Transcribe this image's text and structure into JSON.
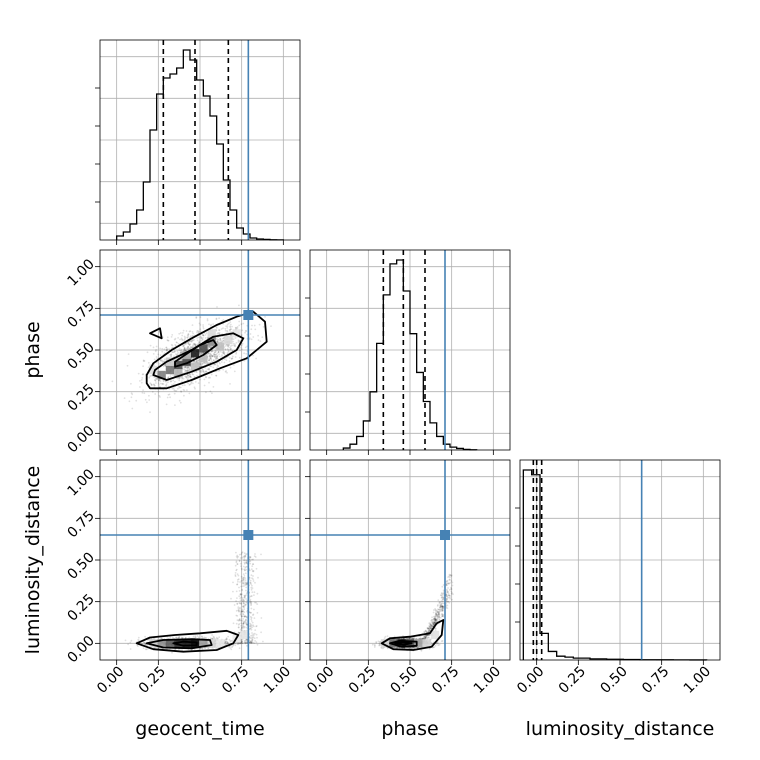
{
  "chart_data": {
    "type": "corner",
    "parameters": [
      "geocent_time",
      "phase",
      "luminosity_distance"
    ],
    "ticks": [
      0.0,
      0.25,
      0.5,
      0.75,
      1.0
    ],
    "tick_labels": [
      "0.00",
      "0.25",
      "0.50",
      "0.75",
      "1.00"
    ],
    "axis_range": [
      -0.1,
      1.1
    ],
    "grid": true,
    "truths": {
      "geocent_time": 0.79,
      "phase": 0.71,
      "luminosity_distance": 0.65,
      "luminosity_distance_marginal_line": 0.63
    },
    "truth_color": "#4682b4",
    "quantiles": {
      "geocent_time": [
        0.28,
        0.47,
        0.67
      ],
      "phase": [
        0.34,
        0.46,
        0.59
      ],
      "luminosity_distance": [
        -0.02,
        0.0,
        0.03
      ]
    },
    "histograms": {
      "geocent_time": {
        "edges": [
          0.0,
          0.04,
          0.08,
          0.12,
          0.16,
          0.2,
          0.24,
          0.28,
          0.32,
          0.36,
          0.4,
          0.44,
          0.48,
          0.52,
          0.56,
          0.6,
          0.64,
          0.68,
          0.72,
          0.76,
          0.8,
          0.84,
          0.88,
          0.92,
          0.96,
          1.0
        ],
        "counts": [
          2,
          4,
          8,
          15,
          29,
          55,
          73,
          81,
          83,
          86,
          95,
          90,
          80,
          72,
          62,
          48,
          30,
          15,
          6,
          3,
          1,
          0.5,
          0.3,
          0.1,
          0.05
        ]
      },
      "phase": {
        "edges": [
          0.1,
          0.14,
          0.18,
          0.22,
          0.26,
          0.3,
          0.34,
          0.38,
          0.42,
          0.46,
          0.5,
          0.54,
          0.58,
          0.62,
          0.66,
          0.7,
          0.74,
          0.78,
          0.82,
          0.86,
          0.9
        ],
        "counts": [
          1,
          3,
          7,
          15,
          30,
          55,
          80,
          96,
          98,
          82,
          60,
          40,
          25,
          14,
          7,
          3,
          1.5,
          0.8,
          0.3,
          0.1
        ]
      },
      "luminosity_distance": {
        "edges": [
          -0.08,
          -0.03,
          0.02,
          0.07,
          0.12,
          0.17,
          0.22,
          0.32,
          0.42,
          0.52,
          0.62,
          0.72,
          0.82,
          0.92,
          1.02
        ],
        "counts": [
          200,
          195,
          28,
          9,
          4,
          3,
          2,
          1.2,
          0.8,
          0.5,
          0.3,
          0.2,
          0.1,
          0.05
        ]
      }
    },
    "contours": {
      "phase_vs_geocent_time": {
        "outer": [
          [
            0.18,
            0.3
          ],
          [
            0.2,
            0.27
          ],
          [
            0.3,
            0.27
          ],
          [
            0.45,
            0.32
          ],
          [
            0.62,
            0.39
          ],
          [
            0.78,
            0.45
          ],
          [
            0.9,
            0.55
          ],
          [
            0.89,
            0.67
          ],
          [
            0.82,
            0.73
          ],
          [
            0.72,
            0.7
          ],
          [
            0.6,
            0.65
          ],
          [
            0.45,
            0.57
          ],
          [
            0.33,
            0.5
          ],
          [
            0.22,
            0.42
          ],
          [
            0.18,
            0.35
          ]
        ],
        "middle": [
          [
            0.22,
            0.35
          ],
          [
            0.3,
            0.32
          ],
          [
            0.45,
            0.37
          ],
          [
            0.6,
            0.43
          ],
          [
            0.72,
            0.5
          ],
          [
            0.76,
            0.57
          ],
          [
            0.7,
            0.6
          ],
          [
            0.58,
            0.58
          ],
          [
            0.45,
            0.5
          ],
          [
            0.3,
            0.43
          ],
          [
            0.23,
            0.38
          ]
        ],
        "inner": [
          [
            0.35,
            0.4
          ],
          [
            0.42,
            0.42
          ],
          [
            0.52,
            0.47
          ],
          [
            0.6,
            0.53
          ],
          [
            0.58,
            0.56
          ],
          [
            0.5,
            0.53
          ],
          [
            0.41,
            0.47
          ],
          [
            0.35,
            0.43
          ]
        ],
        "small": [
          [
            0.2,
            0.6
          ],
          [
            0.27,
            0.57
          ],
          [
            0.26,
            0.63
          ]
        ],
        "density_cells": [
          [
            0.27,
            0.35,
            0.5
          ],
          [
            0.32,
            0.38,
            0.55
          ],
          [
            0.37,
            0.41,
            0.7
          ],
          [
            0.42,
            0.43,
            0.75
          ],
          [
            0.47,
            0.48,
            0.9
          ],
          [
            0.52,
            0.51,
            0.7
          ],
          [
            0.57,
            0.55,
            0.45
          ],
          [
            0.62,
            0.52,
            0.25
          ],
          [
            0.37,
            0.36,
            0.3
          ],
          [
            0.42,
            0.47,
            0.3
          ],
          [
            0.52,
            0.45,
            0.25
          ],
          [
            0.32,
            0.43,
            0.2
          ],
          [
            0.67,
            0.56,
            0.15
          ],
          [
            0.47,
            0.4,
            0.25
          ],
          [
            0.22,
            0.38,
            0.12
          ],
          [
            0.57,
            0.6,
            0.15
          ],
          [
            0.72,
            0.6,
            0.1
          ]
        ],
        "scatter_center": [
          0.47,
          0.46
        ],
        "scatter_spread": [
          0.19,
          0.13
        ],
        "scatter_corr": 0.6
      },
      "luminosity_distance_vs_geocent_time": {
        "outer": [
          [
            0.12,
            0.0
          ],
          [
            0.2,
            0.035
          ],
          [
            0.35,
            0.05
          ],
          [
            0.5,
            0.06
          ],
          [
            0.66,
            0.075
          ],
          [
            0.73,
            0.05
          ],
          [
            0.7,
            0.0
          ],
          [
            0.6,
            -0.04
          ],
          [
            0.4,
            -0.05
          ],
          [
            0.22,
            -0.035
          ]
        ],
        "middle": [
          [
            0.18,
            0.0
          ],
          [
            0.28,
            0.02
          ],
          [
            0.45,
            0.025
          ],
          [
            0.56,
            0.02
          ],
          [
            0.57,
            -0.01
          ],
          [
            0.45,
            -0.03
          ],
          [
            0.28,
            -0.025
          ]
        ],
        "inner": [
          [
            0.34,
            0.0
          ],
          [
            0.4,
            0.01
          ],
          [
            0.48,
            0.005
          ],
          [
            0.48,
            -0.012
          ],
          [
            0.4,
            -0.014
          ]
        ],
        "density_cells": [
          [
            0.32,
            0.0,
            0.6
          ],
          [
            0.37,
            0.0,
            0.8
          ],
          [
            0.42,
            0.0,
            0.85
          ],
          [
            0.47,
            0.0,
            0.95
          ],
          [
            0.27,
            0.0,
            0.4
          ],
          [
            0.52,
            0.0,
            0.35
          ],
          [
            0.22,
            0.0,
            0.15
          ],
          [
            0.57,
            0.0,
            0.15
          ],
          [
            0.62,
            0.0,
            0.08
          ],
          [
            0.72,
            0.03,
            0.08
          ],
          [
            0.77,
            0.05,
            0.1
          ]
        ],
        "scatter_center": [
          0.42,
          0.0
        ],
        "scatter_spread": [
          0.16,
          0.02
        ],
        "tail": {
          "x_center": 0.77,
          "x_spread": 0.035,
          "y_max": 0.55
        }
      },
      "luminosity_distance_vs_phase": {
        "outer": [
          [
            0.33,
            0.0
          ],
          [
            0.38,
            0.03
          ],
          [
            0.5,
            0.04
          ],
          [
            0.62,
            0.06
          ],
          [
            0.66,
            0.12
          ],
          [
            0.7,
            0.14
          ],
          [
            0.69,
            0.05
          ],
          [
            0.63,
            -0.02
          ],
          [
            0.52,
            -0.04
          ],
          [
            0.4,
            -0.035
          ]
        ],
        "middle": [
          [
            0.38,
            0.0
          ],
          [
            0.44,
            0.015
          ],
          [
            0.54,
            0.01
          ],
          [
            0.54,
            -0.015
          ],
          [
            0.45,
            -0.02
          ]
        ],
        "inner": [
          [
            0.41,
            0.0
          ],
          [
            0.46,
            0.007
          ],
          [
            0.51,
            0.0
          ],
          [
            0.46,
            -0.008
          ]
        ],
        "density_cells": [
          [
            0.4,
            0.0,
            0.55
          ],
          [
            0.45,
            0.0,
            0.85
          ],
          [
            0.5,
            0.0,
            0.6
          ],
          [
            0.55,
            0.0,
            0.3
          ],
          [
            0.6,
            0.0,
            0.15
          ],
          [
            0.65,
            0.05,
            0.12
          ],
          [
            0.35,
            0.0,
            0.15
          ]
        ],
        "scatter_center": [
          0.48,
          0.0
        ],
        "scatter_spread": [
          0.09,
          0.02
        ],
        "tail": {
          "x_from": 0.55,
          "x_to": 0.74,
          "y_max": 0.45
        }
      }
    }
  }
}
